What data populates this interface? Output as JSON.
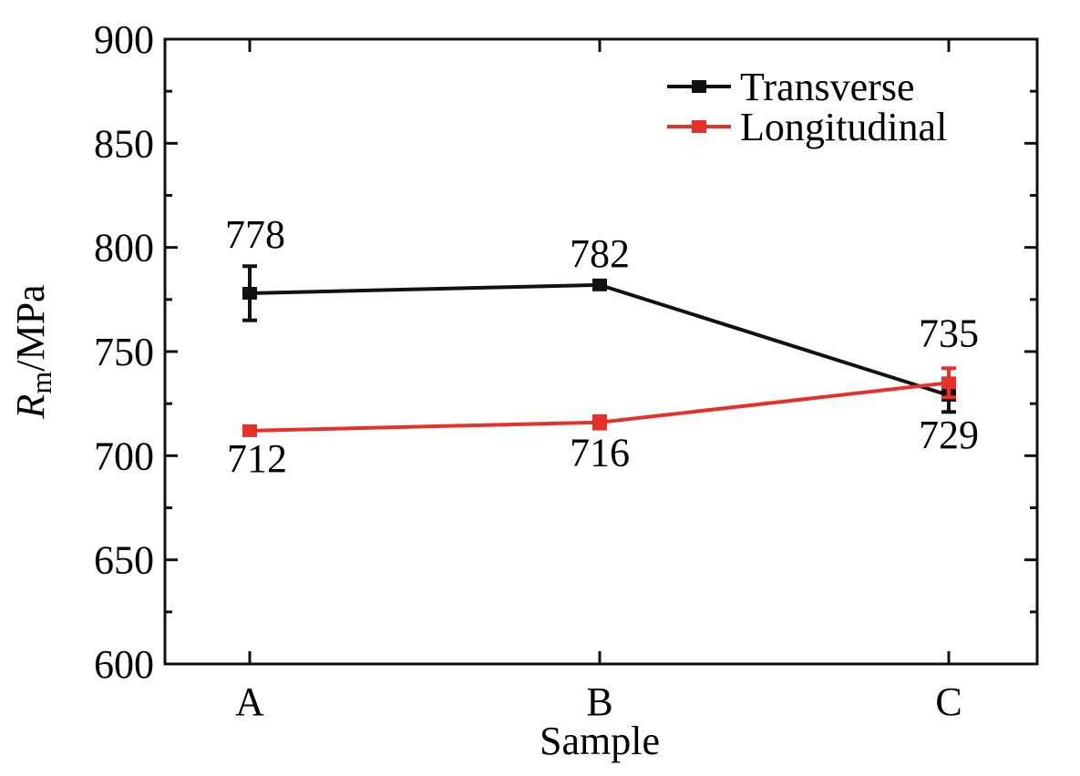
{
  "chart_data": {
    "type": "line",
    "xlabel": "Sample",
    "ylabel_main": "R",
    "ylabel_sub": "m",
    "ylabel_unit": "/MPa",
    "categories": [
      "A",
      "B",
      "C"
    ],
    "ylim": [
      600,
      900
    ],
    "yticks": [
      600,
      650,
      700,
      750,
      800,
      850,
      900
    ],
    "grid": false,
    "legend_position": "top-right",
    "series": [
      {
        "name": "Transverse",
        "color": "#111111",
        "values": [
          778,
          782,
          729
        ],
        "errors": [
          13,
          1,
          8
        ],
        "labels": [
          "778",
          "782",
          "729"
        ]
      },
      {
        "name": "Longitudinal",
        "color": "#e8302a",
        "values": [
          712,
          716,
          735
        ],
        "errors": [
          2,
          3,
          7
        ],
        "labels": [
          "712",
          "716",
          "735"
        ]
      }
    ]
  }
}
